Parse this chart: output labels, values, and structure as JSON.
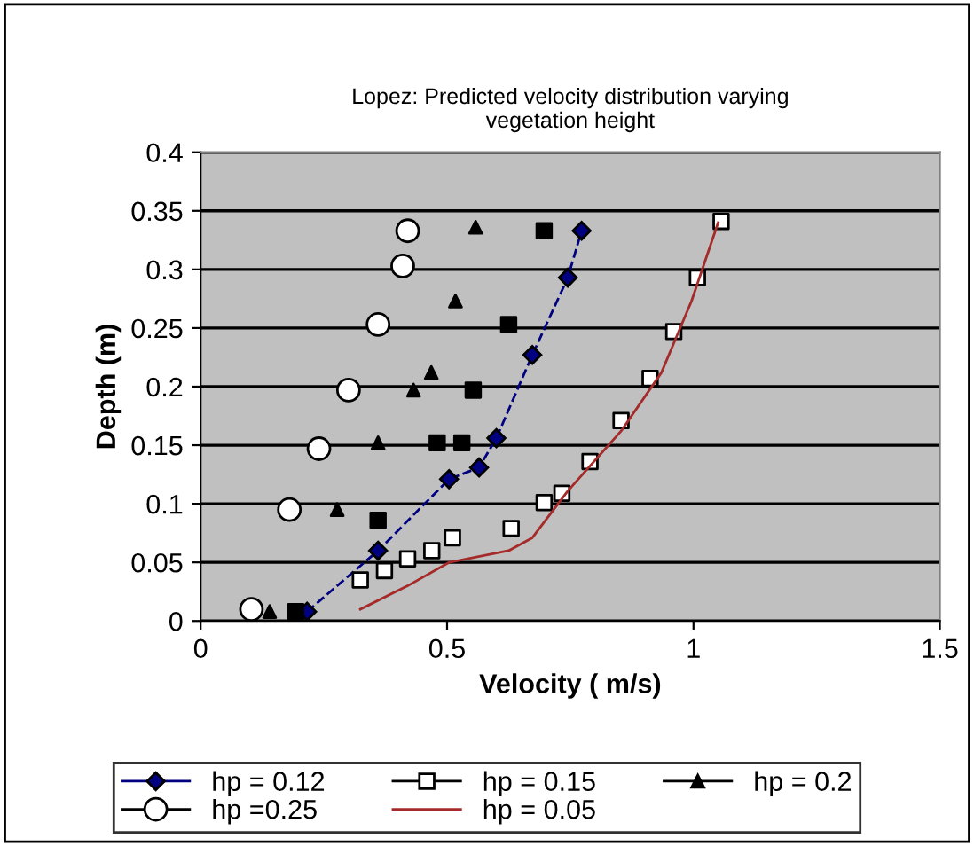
{
  "chart_data": {
    "type": "line",
    "title": "Lopez: Predicted velocity distribution varying\nvegetation height",
    "xlabel": "Velocity ( m/s)",
    "ylabel": "Depth (m)",
    "xlim": [
      0,
      1.5
    ],
    "xticks": [
      0,
      0.5,
      1,
      1.5
    ],
    "ylim": [
      0,
      0.4
    ],
    "yticks": [
      0,
      0.05,
      0.1,
      0.15,
      0.2,
      0.25,
      0.3,
      0.35,
      0.4
    ],
    "grid": "y",
    "legend": "bottom",
    "series": [
      {
        "name": "hp = 0.12",
        "color": "#000080",
        "marker": "diamond",
        "line_style": "dashed",
        "x": [
          0.216,
          0.36,
          0.504,
          0.565,
          0.6,
          0.673,
          0.745,
          0.773
        ],
        "values": [
          0.008,
          0.06,
          0.121,
          0.131,
          0.156,
          0.227,
          0.293,
          0.333
        ]
      },
      {
        "name": "hp = 0.15",
        "type": "scatter",
        "color": "#000000",
        "marker": "square",
        "x": [
          0.324,
          0.373,
          0.42,
          0.469,
          0.511,
          0.63,
          0.697,
          0.733,
          0.79,
          0.853,
          0.912,
          0.96,
          1.008,
          1.056
        ],
        "values": [
          0.035,
          0.043,
          0.053,
          0.06,
          0.071,
          0.079,
          0.101,
          0.109,
          0.136,
          0.171,
          0.207,
          0.247,
          0.293,
          0.341
        ]
      },
      {
        "name": "hp = 0.2",
        "type": "scatter",
        "color": "#000000",
        "marker": "triangle",
        "x": [
          0.14,
          0.277,
          0.36,
          0.432,
          0.468,
          0.517,
          0.558
        ],
        "values": [
          0.008,
          0.095,
          0.152,
          0.197,
          0.212,
          0.273,
          0.336
        ]
      },
      {
        "name": "hp =0.25",
        "type": "scatter",
        "color": "#000000",
        "marker": "circle",
        "x": [
          0.103,
          0.18,
          0.24,
          0.3,
          0.36,
          0.41,
          0.42
        ],
        "values": [
          0.01,
          0.095,
          0.147,
          0.197,
          0.253,
          0.303,
          0.333
        ]
      },
      {
        "name": "hp = 0.05",
        "color": "#a52a2a",
        "marker": "none",
        "line_style": "solid",
        "x": [
          0.324,
          0.42,
          0.504,
          0.625,
          0.673,
          0.745,
          0.853,
          0.935,
          0.996,
          1.05
        ],
        "values": [
          0.01,
          0.03,
          0.05,
          0.06,
          0.071,
          0.111,
          0.162,
          0.212,
          0.273,
          0.34
        ]
      },
      {
        "type": "scatter",
        "color": "#000000",
        "marker": "square",
        "x": [
          0.193,
          0.36,
          0.48,
          0.53,
          0.553,
          0.625,
          0.697
        ],
        "values": [
          0.008,
          0.086,
          0.152,
          0.152,
          0.197,
          0.253,
          0.333
        ]
      }
    ]
  }
}
